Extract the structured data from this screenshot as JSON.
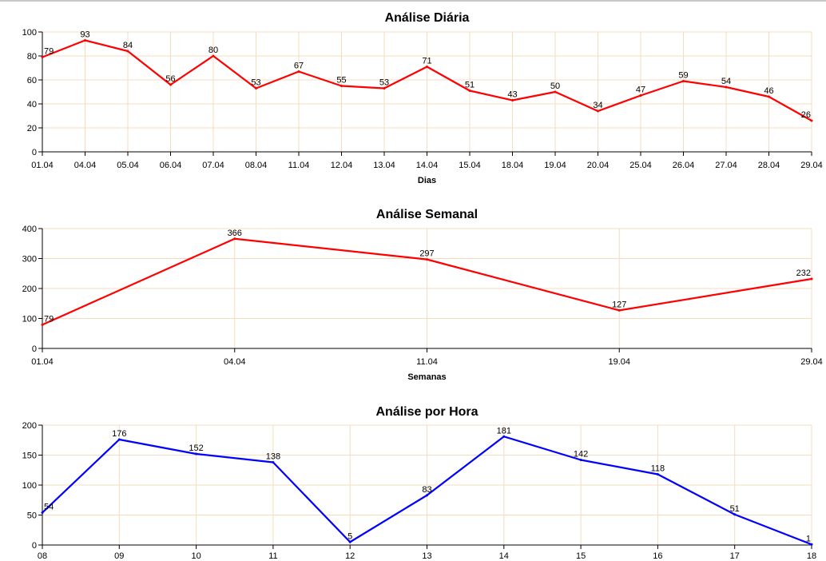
{
  "chart_data": [
    {
      "type": "line",
      "title": "Análise Diária",
      "xlabel": "Dias",
      "ylabel": "",
      "ylim": [
        0,
        100
      ],
      "yticks": [
        0,
        20,
        40,
        60,
        80,
        100
      ],
      "grid": true,
      "line_color": "#ff0000",
      "categories": [
        "01.04",
        "04.04",
        "05.04",
        "06.04",
        "07.04",
        "08.04",
        "11.04",
        "12.04",
        "13.04",
        "14.04",
        "15.04",
        "18.04",
        "19.04",
        "20.04",
        "25.04",
        "26.04",
        "27.04",
        "28.04",
        "29.04"
      ],
      "values": [
        79,
        93,
        84,
        56,
        80,
        53,
        67,
        55,
        53,
        71,
        51,
        43,
        50,
        34,
        47,
        59,
        54,
        46,
        26
      ]
    },
    {
      "type": "line",
      "title": "Análise Semanal",
      "xlabel": "Semanas",
      "ylabel": "",
      "ylim": [
        0,
        400
      ],
      "yticks": [
        0,
        100,
        200,
        300,
        400
      ],
      "grid": true,
      "line_color": "#ff0000",
      "categories": [
        "01.04",
        "04.04",
        "11.04",
        "19.04",
        "29.04"
      ],
      "values": [
        79,
        366,
        297,
        127,
        232
      ]
    },
    {
      "type": "line",
      "title": "Análise por Hora",
      "xlabel": "",
      "ylabel": "",
      "ylim": [
        0,
        200
      ],
      "yticks": [
        0,
        50,
        100,
        150,
        200
      ],
      "grid": true,
      "line_color": "#0000ff",
      "categories": [
        "08",
        "09",
        "10",
        "11",
        "12",
        "13",
        "14",
        "15",
        "16",
        "17",
        "18"
      ],
      "values": [
        54,
        176,
        152,
        138,
        5,
        83,
        181,
        142,
        118,
        51,
        1
      ]
    }
  ]
}
